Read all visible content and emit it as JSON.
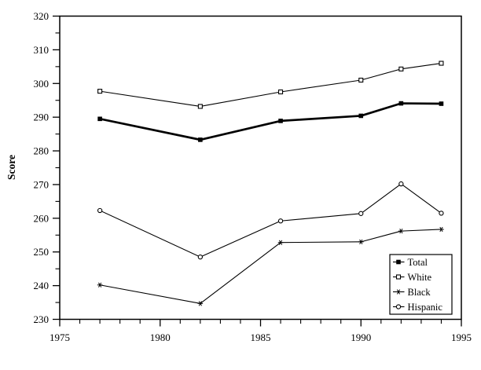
{
  "page": {
    "background_color": "#ffffff",
    "foreground_color": "#000000"
  },
  "chart_data": {
    "type": "line",
    "title": "",
    "xlabel": "",
    "ylabel": "Score",
    "xlim": [
      1975,
      1995
    ],
    "ylim": [
      230,
      320
    ],
    "x_major_ticks": [
      1975,
      1980,
      1985,
      1990,
      1995
    ],
    "x_minor_step": 1,
    "y_major_ticks": [
      230,
      240,
      250,
      260,
      270,
      280,
      290,
      300,
      310,
      320
    ],
    "y_minor_step": 5,
    "grid": false,
    "legend_position": "lower-right",
    "x": [
      1977,
      1982,
      1986,
      1990,
      1992,
      1994
    ],
    "series": [
      {
        "name": "Total",
        "marker": "filled-square-marker-icon",
        "line_style": "thick",
        "values": [
          289.5,
          283.3,
          288.9,
          290.4,
          294.1,
          294.0
        ]
      },
      {
        "name": "White",
        "marker": "open-square-marker-icon",
        "line_style": "thin",
        "values": [
          297.7,
          293.2,
          297.5,
          301.0,
          304.3,
          306.0
        ]
      },
      {
        "name": "Black",
        "marker": "star-marker-icon",
        "line_style": "thin",
        "values": [
          240.2,
          234.7,
          252.8,
          253.0,
          256.2,
          256.7
        ]
      },
      {
        "name": "Hispanic",
        "marker": "open-circle-marker-icon",
        "line_style": "thin",
        "values": [
          262.3,
          248.5,
          259.2,
          261.4,
          270.2,
          261.5
        ]
      }
    ],
    "colors": {
      "line": "#000000",
      "text": "#000000",
      "plot_background": "#ffffff"
    }
  }
}
